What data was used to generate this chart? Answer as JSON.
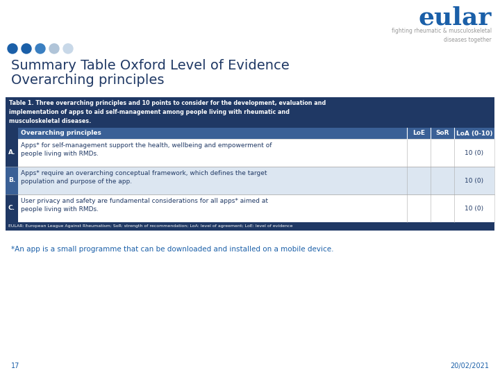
{
  "bg_color": "#ffffff",
  "title_line1": "Summary Table Oxford Level of Evidence",
  "title_line2": "Overarching principles",
  "title_color": "#1f3864",
  "title_fontsize": 14,
  "eular_text": "eular",
  "eular_color": "#1a5fa8",
  "eular_sub": "fighting rheumatic & musculoskeletal\ndiseases together",
  "eular_sub_color": "#999999",
  "dots_colors": [
    "#1a5fa8",
    "#1a5fa8",
    "#3a7fc1",
    "#b0c4d8",
    "#c8d8e8"
  ],
  "table_header_bg": "#1f3864",
  "table_header_text": "#ffffff",
  "table_subheader_bg": "#3a6096",
  "table_subheader_text": "#ffffff",
  "table_row_a_bg": "#ffffff",
  "table_row_b_bg": "#dce6f1",
  "table_row_c_bg": "#ffffff",
  "col_header": "Overarching principles",
  "col_loe": "LoE",
  "col_sor": "SoR",
  "col_loa": "LoA (0-10)",
  "caption_text": "Table 1. Three overarching principles and 10 points to consider for the development, evaluation and\nimplementation of apps to aid self-management among people living with rheumatic and\nmusculoskeletal diseases.",
  "rows": [
    {
      "label": "A.",
      "text": "Apps* for self-management support the health, wellbeing and empowerment of\npeople living with RMDs.",
      "loe": "",
      "sor": "",
      "loa": "10 (0)"
    },
    {
      "label": "B.",
      "text": "Apps* require an overarching conceptual framework, which defines the target\npopulation and purpose of the app.",
      "loe": "",
      "sor": "",
      "loa": "10 (0)"
    },
    {
      "label": "C.",
      "text": "User privacy and safety are fundamental considerations for all apps* aimed at\npeople living with RMDs.",
      "loe": "",
      "sor": "",
      "loa": "10 (0)"
    }
  ],
  "footnote": "EULAR: European League Against Rheumatism; SoR: strength of recommendation; LoA: level of agreement; LoE: level of evidence",
  "footnote_bg": "#1f3864",
  "footnote_color": "#ffffff",
  "app_note": "*An app is a small programme that can be downloaded and installed on a mobile device.",
  "app_note_color": "#1a5fa8",
  "page_num": "17",
  "page_date": "20/02/2021",
  "page_color": "#1a5fa8"
}
